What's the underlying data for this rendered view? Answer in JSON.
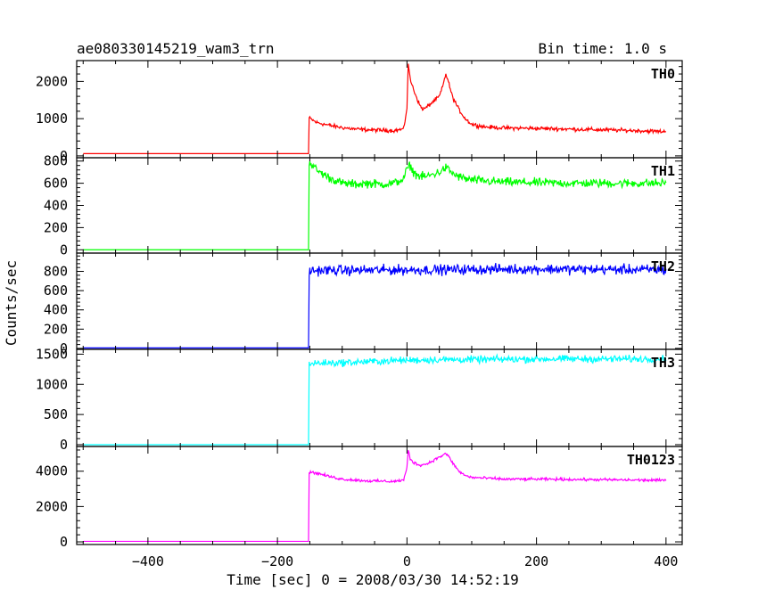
{
  "header": {
    "title": "ae080330145219_wam3_trn",
    "bin_time": "Bin time: 1.0 s"
  },
  "chart_data": {
    "type": "line",
    "xlabel": "Time [sec] 0 = 2008/03/30 14:52:19",
    "ylabel": "Counts/sec",
    "xlim": [
      -510,
      425
    ],
    "x_ticks": [
      -400,
      -200,
      0,
      200,
      400
    ],
    "x_tick_labels": [
      "−400",
      "−200",
      "0",
      "200",
      "400"
    ],
    "grid": false,
    "series": [
      {
        "name": "TH0",
        "color": "#ff0000",
        "ylim": [
          -50,
          2560
        ],
        "y_ticks": [
          0,
          1000,
          2000
        ],
        "x": [
          -500,
          -152,
          -151,
          -140,
          -120,
          -100,
          -80,
          -60,
          -40,
          -20,
          -5,
          0,
          2,
          5,
          8,
          12,
          20,
          25,
          30,
          40,
          50,
          55,
          60,
          63,
          70,
          80,
          90,
          100,
          120,
          150,
          200,
          250,
          300,
          350,
          400
        ],
        "values": [
          60,
          60,
          1020,
          900,
          820,
          760,
          720,
          700,
          690,
          680,
          720,
          1300,
          2500,
          2050,
          1900,
          1700,
          1350,
          1250,
          1300,
          1450,
          1600,
          1850,
          2200,
          2050,
          1600,
          1250,
          1000,
          850,
          780,
          750,
          740,
          720,
          700,
          680,
          650
        ],
        "noise": 40
      },
      {
        "name": "TH1",
        "color": "#00ff00",
        "ylim": [
          -30,
          830
        ],
        "y_ticks": [
          0,
          200,
          400,
          600,
          800
        ],
        "x": [
          -500,
          -152,
          -151,
          -140,
          -120,
          -100,
          -80,
          -60,
          -40,
          -20,
          -5,
          0,
          5,
          10,
          20,
          30,
          40,
          50,
          60,
          65,
          70,
          80,
          90,
          100,
          120,
          150,
          200,
          250,
          300,
          350,
          400
        ],
        "values": [
          0,
          0,
          800,
          720,
          650,
          600,
          590,
          600,
          590,
          600,
          640,
          730,
          760,
          700,
          660,
          660,
          680,
          700,
          740,
          720,
          690,
          660,
          640,
          630,
          620,
          610,
          605,
          600,
          600,
          600,
          600
        ],
        "noise": 30
      },
      {
        "name": "TH2",
        "color": "#0000ff",
        "ylim": [
          -10,
          990
        ],
        "y_ticks": [
          0,
          200,
          400,
          600,
          800
        ],
        "x": [
          -500,
          -152,
          -151,
          -140,
          0,
          100,
          200,
          300,
          400
        ],
        "values": [
          5,
          5,
          800,
          810,
          815,
          820,
          825,
          820,
          815
        ],
        "noise": 40
      },
      {
        "name": "TH3",
        "color": "#00ffff",
        "ylim": [
          -30,
          1580
        ],
        "y_ticks": [
          0,
          500,
          1000,
          1500
        ],
        "x": [
          -500,
          -152,
          -151,
          -140,
          -100,
          -50,
          0,
          50,
          100,
          200,
          300,
          400
        ],
        "values": [
          0,
          0,
          1340,
          1350,
          1360,
          1380,
          1400,
          1410,
          1410,
          1420,
          1420,
          1420
        ],
        "noise": 45
      },
      {
        "name": "TH0123",
        "color": "#ff00ff",
        "ylim": [
          -150,
          5400
        ],
        "y_ticks": [
          0,
          2000,
          4000
        ],
        "x": [
          -500,
          -152,
          -151,
          -140,
          -120,
          -100,
          -60,
          -20,
          -5,
          0,
          2,
          5,
          10,
          15,
          20,
          30,
          40,
          55,
          60,
          65,
          70,
          80,
          90,
          100,
          150,
          200,
          300,
          400
        ],
        "values": [
          30,
          30,
          3950,
          3900,
          3700,
          3550,
          3450,
          3420,
          3500,
          4200,
          5200,
          4700,
          4500,
          4400,
          4350,
          4400,
          4600,
          4900,
          5000,
          4800,
          4500,
          4000,
          3750,
          3650,
          3550,
          3550,
          3520,
          3480
        ],
        "noise": 60
      }
    ]
  }
}
